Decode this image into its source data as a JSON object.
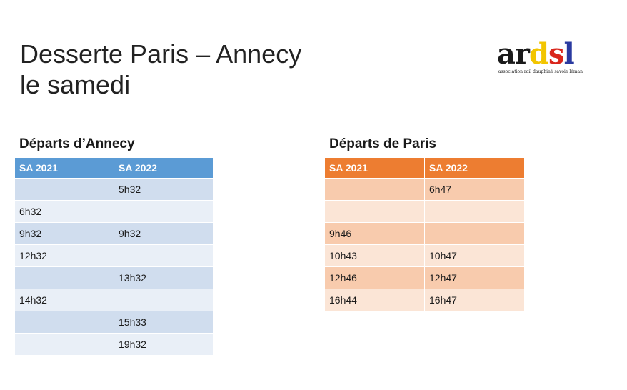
{
  "slide": {
    "title_line1": "Desserte Paris – Annecy",
    "title_line2": "le samedi"
  },
  "logo": {
    "letters": [
      {
        "char": "a",
        "color": "#1a1a1a"
      },
      {
        "char": "r",
        "color": "#1a1a1a"
      },
      {
        "char": "d",
        "color": "#f2c500"
      },
      {
        "char": "s",
        "color": "#d9261c"
      },
      {
        "char": "l",
        "color": "#2a3aa0"
      }
    ],
    "tagline": "association rail dauphiné savoie léman"
  },
  "annecy": {
    "heading": "Départs d’Annecy",
    "columns": [
      "SA 2021",
      "SA 2022"
    ],
    "rows": [
      [
        "",
        "5h32"
      ],
      [
        "6h32",
        ""
      ],
      [
        "9h32",
        "9h32"
      ],
      [
        "12h32",
        ""
      ],
      [
        "",
        "13h32"
      ],
      [
        "14h32",
        ""
      ],
      [
        "",
        "15h33"
      ],
      [
        "",
        "19h32"
      ]
    ]
  },
  "paris": {
    "heading": "Départs de Paris",
    "columns": [
      "SA 2021",
      "SA 2022"
    ],
    "rows": [
      [
        "",
        "6h47"
      ],
      [
        "",
        ""
      ],
      [
        "9h46",
        ""
      ],
      [
        "10h43",
        "10h47"
      ],
      [
        "12h46",
        "12h47"
      ],
      [
        "16h44",
        "16h47"
      ]
    ]
  },
  "colors": {
    "annecy_header": "#5b9bd5",
    "annecy_row_dark": "#d0ddee",
    "annecy_row_light": "#e9eff7",
    "paris_header": "#ed7d31",
    "paris_row_dark": "#f8cbad",
    "paris_row_light": "#fbe5d6"
  }
}
